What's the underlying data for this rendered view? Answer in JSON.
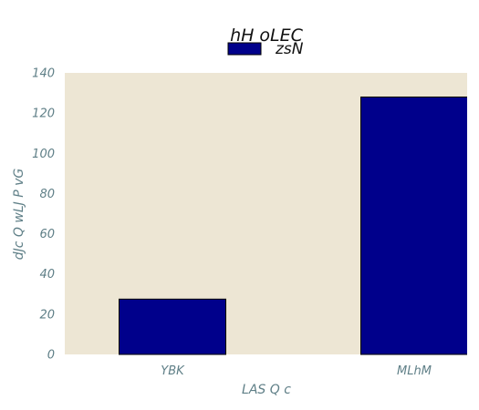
{
  "chart_data": {
    "type": "bar",
    "title": "hH oLEC",
    "xlabel": "LAS Q c",
    "ylabel": "dJc Q wLJ P vG",
    "categories": [
      "YBK",
      "MLhM"
    ],
    "series": [
      {
        "name": "zsN",
        "values": [
          27.5,
          128
        ],
        "color": "#00008b"
      }
    ],
    "ylim": [
      0,
      140
    ],
    "yticks": [
      0,
      20,
      40,
      60,
      80,
      100,
      120,
      140
    ],
    "grid": false,
    "legend_position": "top-center",
    "plot_background": "#ede6d4"
  }
}
